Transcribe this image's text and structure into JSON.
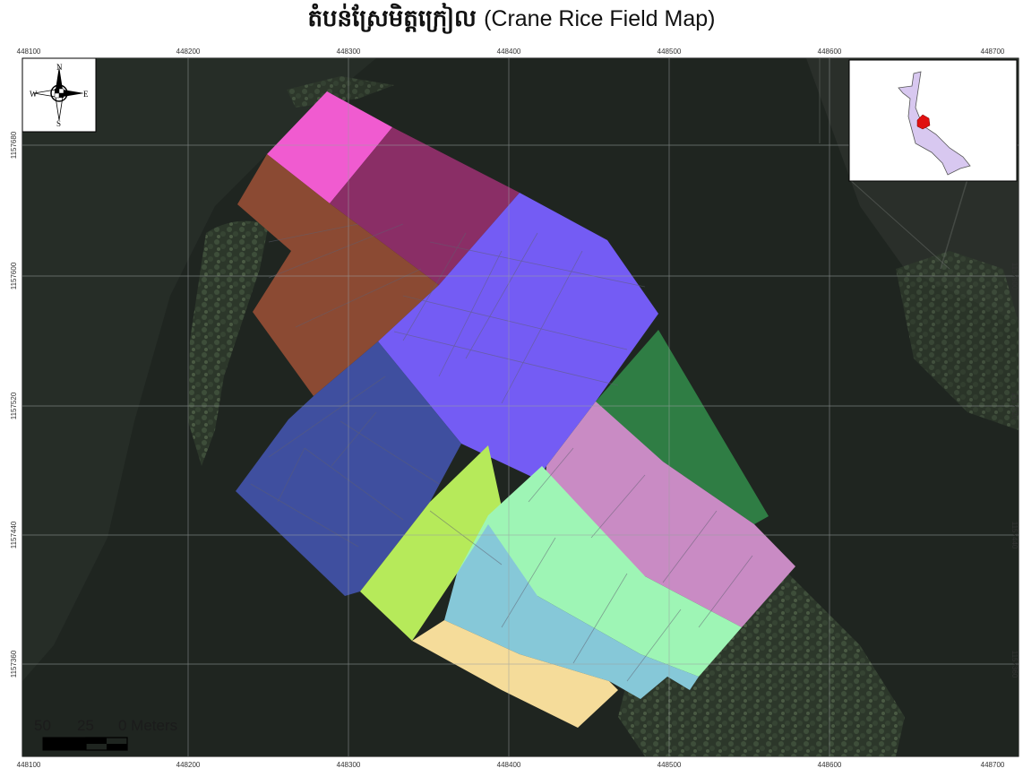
{
  "title": {
    "khmer": "តំបន់ស្រែមិត្តក្រៀល",
    "english": "(Crane Rice Field Map)"
  },
  "coordinates": {
    "top_x": [
      "448100",
      "448200",
      "448300",
      "448400",
      "448500",
      "448600",
      "448700"
    ],
    "bottom_x": [
      "448100",
      "448200",
      "448300",
      "448400",
      "448500",
      "448600",
      "448700"
    ],
    "left_y": [
      "1157680",
      "1157600",
      "1157520",
      "1157440",
      "1157360"
    ],
    "right_y": [
      "1157680",
      "1157600",
      "1157520",
      "1157440",
      "1157360"
    ]
  },
  "north_arrow": {
    "n": "N",
    "s": "S",
    "w": "W",
    "e": "E"
  },
  "scale_bar": {
    "labels": [
      "50",
      "25",
      "0 Meters"
    ]
  },
  "colors": {
    "imagery_dark": "#22281f",
    "vegetation": "#3a4a34",
    "pink_field": "#f05bd0",
    "maroon_field": "#8a2e66",
    "brown_field": "#8b4a33",
    "purple_field": "#745cf4",
    "navy_field": "#3f4f9f",
    "green_field": "#2f7d44",
    "lime_field": "#b6ea5a",
    "mint_field": "#9ef5b5",
    "mauve_field": "#c98bc4",
    "cyan_field": "#86c8d8",
    "tan_field": "#f5dc9a",
    "inset_region": "#d8c8f0",
    "inset_highlight": "#e01010"
  }
}
